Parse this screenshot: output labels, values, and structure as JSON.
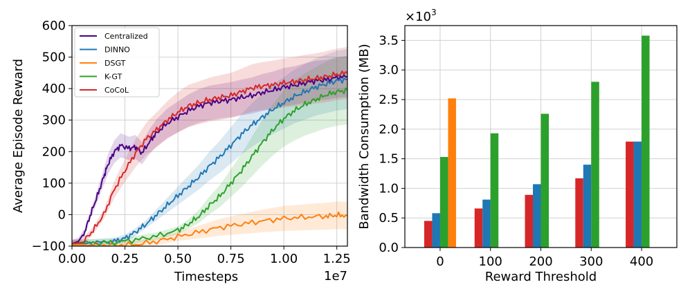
{
  "chart_data": [
    {
      "type": "line",
      "xlabel": "Timesteps",
      "ylabel": "Average Episode Reward",
      "x_offset_label": "1e7",
      "xlim": [
        0,
        1.3
      ],
      "ylim": [
        -100,
        600
      ],
      "x_ticks": [
        "0.00",
        "0.25",
        "0.50",
        "0.75",
        "1.00",
        "1.25"
      ],
      "x_tick_values": [
        0,
        0.25,
        0.5,
        0.75,
        1.0,
        1.25
      ],
      "y_ticks": [
        "−100",
        "0",
        "100",
        "200",
        "300",
        "400",
        "500",
        "600"
      ],
      "y_tick_values": [
        -100,
        0,
        100,
        200,
        300,
        400,
        500,
        600
      ],
      "grid": true,
      "legend_position": "top-left",
      "series": [
        {
          "name": "Centralized",
          "color": "#4b0082",
          "band": 0.12,
          "points": [
            [
              0,
              -92
            ],
            [
              0.03,
              -85
            ],
            [
              0.06,
              -55
            ],
            [
              0.09,
              5
            ],
            [
              0.12,
              60
            ],
            [
              0.15,
              120
            ],
            [
              0.17,
              160
            ],
            [
              0.2,
              200
            ],
            [
              0.23,
              220
            ],
            [
              0.27,
              210
            ],
            [
              0.3,
              215
            ],
            [
              0.33,
              195
            ],
            [
              0.37,
              235
            ],
            [
              0.4,
              260
            ],
            [
              0.45,
              290
            ],
            [
              0.5,
              310
            ],
            [
              0.55,
              330
            ],
            [
              0.6,
              345
            ],
            [
              0.65,
              355
            ],
            [
              0.7,
              360
            ],
            [
              0.75,
              365
            ],
            [
              0.8,
              372
            ],
            [
              0.85,
              378
            ],
            [
              0.9,
              388
            ],
            [
              0.95,
              395
            ],
            [
              1.0,
              405
            ],
            [
              1.05,
              410
            ],
            [
              1.1,
              418
            ],
            [
              1.15,
              425
            ],
            [
              1.2,
              428
            ],
            [
              1.25,
              435
            ],
            [
              1.3,
              438
            ]
          ]
        },
        {
          "name": "DINNO",
          "color": "#1f77b4",
          "band": 0.18,
          "points": [
            [
              0,
              -92
            ],
            [
              0.1,
              -90
            ],
            [
              0.2,
              -85
            ],
            [
              0.25,
              -75
            ],
            [
              0.3,
              -55
            ],
            [
              0.35,
              -30
            ],
            [
              0.4,
              0
            ],
            [
              0.45,
              30
            ],
            [
              0.5,
              60
            ],
            [
              0.55,
              90
            ],
            [
              0.6,
              120
            ],
            [
              0.65,
              155
            ],
            [
              0.7,
              185
            ],
            [
              0.75,
              220
            ],
            [
              0.8,
              255
            ],
            [
              0.85,
              285
            ],
            [
              0.9,
              310
            ],
            [
              0.95,
              335
            ],
            [
              1.0,
              355
            ],
            [
              1.05,
              375
            ],
            [
              1.1,
              390
            ],
            [
              1.15,
              405
            ],
            [
              1.2,
              415
            ],
            [
              1.25,
              425
            ],
            [
              1.3,
              430
            ]
          ]
        },
        {
          "name": "DSGT",
          "color": "#ff7f0e",
          "band": 0.45,
          "points": [
            [
              0,
              -95
            ],
            [
              0.1,
              -97
            ],
            [
              0.2,
              -97
            ],
            [
              0.3,
              -95
            ],
            [
              0.4,
              -85
            ],
            [
              0.5,
              -70
            ],
            [
              0.6,
              -55
            ],
            [
              0.7,
              -40
            ],
            [
              0.8,
              -30
            ],
            [
              0.9,
              -20
            ],
            [
              1.0,
              -12
            ],
            [
              1.1,
              -8
            ],
            [
              1.2,
              -5
            ],
            [
              1.25,
              -2
            ],
            [
              1.3,
              -3
            ]
          ]
        },
        {
          "name": "K-GT",
          "color": "#2ca02c",
          "band": 0.22,
          "points": [
            [
              0,
              -92
            ],
            [
              0.1,
              -90
            ],
            [
              0.2,
              -88
            ],
            [
              0.3,
              -80
            ],
            [
              0.4,
              -68
            ],
            [
              0.5,
              -50
            ],
            [
              0.55,
              -30
            ],
            [
              0.6,
              -5
            ],
            [
              0.65,
              30
            ],
            [
              0.7,
              60
            ],
            [
              0.75,
              100
            ],
            [
              0.8,
              140
            ],
            [
              0.85,
              185
            ],
            [
              0.9,
              230
            ],
            [
              0.95,
              270
            ],
            [
              1.0,
              305
            ],
            [
              1.05,
              330
            ],
            [
              1.1,
              350
            ],
            [
              1.15,
              365
            ],
            [
              1.2,
              380
            ],
            [
              1.25,
              390
            ],
            [
              1.3,
              395
            ]
          ]
        },
        {
          "name": "CoCoL",
          "color": "#d62728",
          "band": 0.15,
          "points": [
            [
              0,
              -92
            ],
            [
              0.05,
              -88
            ],
            [
              0.1,
              -50
            ],
            [
              0.15,
              0
            ],
            [
              0.2,
              80
            ],
            [
              0.25,
              140
            ],
            [
              0.3,
              195
            ],
            [
              0.35,
              240
            ],
            [
              0.4,
              270
            ],
            [
              0.45,
              300
            ],
            [
              0.5,
              325
            ],
            [
              0.55,
              345
            ],
            [
              0.6,
              355
            ],
            [
              0.65,
              365
            ],
            [
              0.7,
              372
            ],
            [
              0.75,
              378
            ],
            [
              0.8,
              390
            ],
            [
              0.85,
              402
            ],
            [
              0.9,
              408
            ],
            [
              0.95,
              412
            ],
            [
              1.0,
              418
            ],
            [
              1.05,
              422
            ],
            [
              1.1,
              428
            ],
            [
              1.15,
              432
            ],
            [
              1.2,
              438
            ],
            [
              1.25,
              445
            ],
            [
              1.3,
              450
            ]
          ]
        }
      ]
    },
    {
      "type": "bar",
      "xlabel": "Reward Threshold",
      "ylabel": "Bandwidth Consumption (MB)",
      "y_multiplier_label": "×10",
      "y_multiplier_exp": "3",
      "ylim": [
        0,
        3.75
      ],
      "y_ticks": [
        "0.0",
        "0.5",
        "1.0",
        "1.5",
        "2.0",
        "2.5",
        "3.0",
        "3.5"
      ],
      "y_tick_values": [
        0,
        0.5,
        1.0,
        1.5,
        2.0,
        2.5,
        3.0,
        3.5
      ],
      "categories": [
        "0",
        "100",
        "200",
        "300",
        "400"
      ],
      "grid": true,
      "series": [
        {
          "color": "#d62728",
          "values": [
            0.45,
            0.66,
            0.89,
            1.17,
            1.79
          ]
        },
        {
          "color": "#1f77b4",
          "values": [
            0.58,
            0.81,
            1.07,
            1.4,
            1.79
          ]
        },
        {
          "color": "#2ca02c",
          "values": [
            1.53,
            1.93,
            2.26,
            2.8,
            3.58
          ]
        },
        {
          "color": "#ff7f0e",
          "values": [
            2.52,
            null,
            null,
            null,
            null
          ]
        }
      ]
    }
  ]
}
